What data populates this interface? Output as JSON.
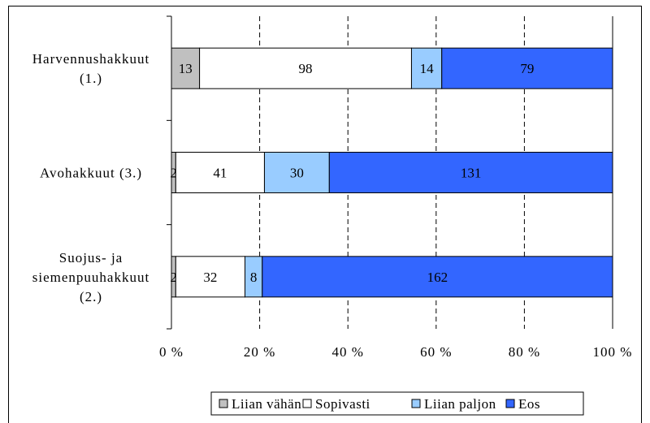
{
  "chart_data": {
    "type": "bar",
    "orientation": "horizontal",
    "stacked": "percent",
    "categories": [
      "Harvennushakkuut\n(1.)",
      "Avohakkuut (3.)",
      "Suojus- ja\nsiemenpuuhakkuut\n(2.)"
    ],
    "series": [
      {
        "name": "Liian vähän",
        "values": [
          13,
          2,
          2
        ],
        "color": "#c0c0c0"
      },
      {
        "name": "Sopivasti",
        "values": [
          98,
          41,
          32
        ],
        "color": "#ffffff"
      },
      {
        "name": "Liian paljon",
        "values": [
          14,
          30,
          8
        ],
        "color": "#99ccff"
      },
      {
        "name": "Eos",
        "values": [
          79,
          131,
          162
        ],
        "color": "#3366ff"
      }
    ],
    "x_ticks": [
      "0 %",
      "20 %",
      "40 %",
      "60 %",
      "80 %",
      "100 %"
    ],
    "xlim": [
      0,
      100
    ],
    "grid": "vertical dashed",
    "legend": "bottom"
  }
}
